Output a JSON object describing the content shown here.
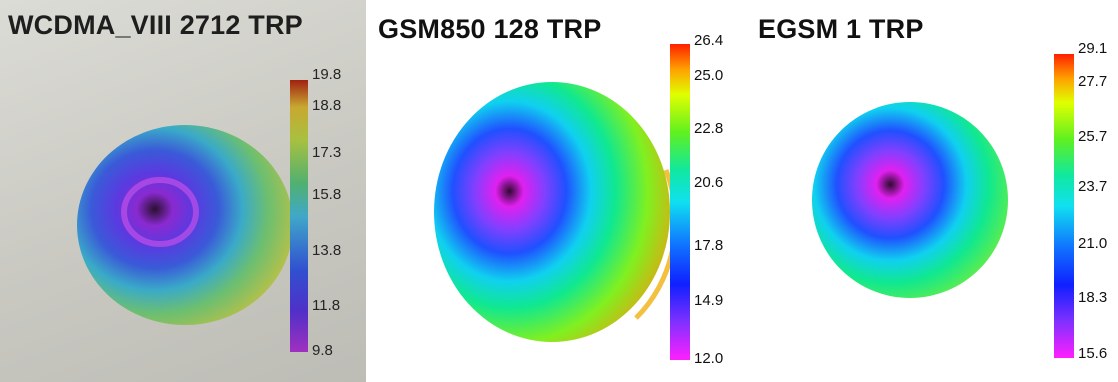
{
  "chart_data": [
    {
      "type": "heatmap",
      "title": "WCDMA_VIII 2712 TRP",
      "colorbar_ticks": [
        19.8,
        18.8,
        17.3,
        15.8,
        13.8,
        11.8,
        9.8
      ],
      "range": [
        9.8,
        19.8
      ]
    },
    {
      "type": "heatmap",
      "title": "GSM850 128 TRP",
      "colorbar_ticks": [
        26.4,
        25.0,
        22.8,
        20.6,
        17.8,
        14.9,
        12.0
      ],
      "range": [
        12.0,
        26.4
      ]
    },
    {
      "type": "heatmap",
      "title": "EGSM 1 TRP",
      "colorbar_ticks": [
        29.1,
        27.7,
        25.7,
        23.7,
        21.0,
        18.3,
        15.6
      ],
      "range": [
        15.6,
        29.1
      ]
    }
  ]
}
